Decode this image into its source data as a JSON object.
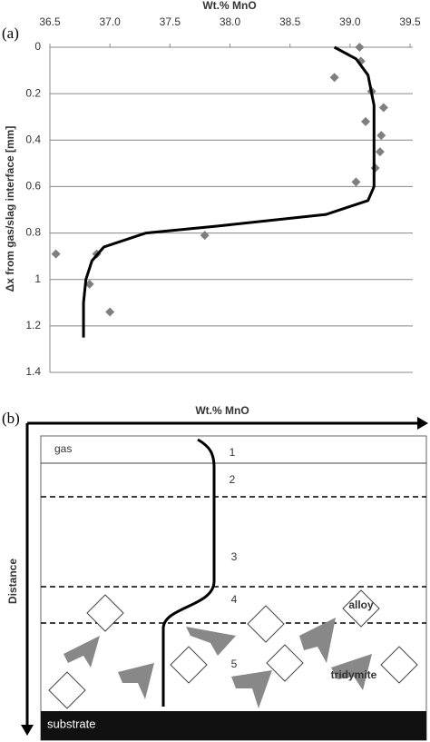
{
  "chart_data": {
    "type": "scatter-line",
    "panel_label": "(a)",
    "x_label": "Wt.% MnO",
    "y_label": "Δx from gas/slag interface [mm]",
    "xlim": [
      36.5,
      39.5
    ],
    "xticks": [
      36.5,
      {
        "value": 37,
        "label": "37.0"
      },
      37.5,
      {
        "value": 38,
        "label": "38.0"
      },
      38.5,
      {
        "value": 39,
        "label": "39.0"
      },
      39.5
    ],
    "ylim": [
      0,
      1.4
    ],
    "yticks": [
      0,
      0.2,
      0.4,
      0.6,
      0.8,
      1,
      1.2,
      1.4
    ],
    "y_inverted": true,
    "x_axis_top": true,
    "grid": true,
    "series": [
      {
        "kind": "scatter",
        "color": "#7f7f7f",
        "x": [
          39.08,
          39.09,
          38.87,
          39.18,
          39.28,
          39.13,
          39.26,
          39.25,
          39.21,
          39.05,
          37.79,
          36.55,
          36.89,
          36.83,
          37.0
        ],
        "values": [
          0.0,
          0.06,
          0.13,
          0.19,
          0.26,
          0.32,
          0.38,
          0.45,
          0.52,
          0.58,
          0.81,
          0.89,
          0.89,
          1.02,
          1.14
        ]
      },
      {
        "kind": "line",
        "color": "#000000",
        "x": [
          38.87,
          39.05,
          39.15,
          39.2,
          39.2,
          39.15,
          38.8,
          37.9,
          37.3,
          36.95,
          36.85,
          36.8,
          36.78,
          36.78
        ],
        "values": [
          0.0,
          0.05,
          0.12,
          0.25,
          0.6,
          0.66,
          0.72,
          0.77,
          0.8,
          0.86,
          0.92,
          1.0,
          1.1,
          1.25
        ]
      }
    ]
  },
  "diagram": {
    "panel_label": "(b)",
    "x_axis": "Wt.% MnO",
    "y_axis": "Distance",
    "top_region": "gas",
    "zones": [
      "1",
      "2",
      "3",
      "4",
      "5"
    ],
    "alloy": "alloy",
    "tridymite": "tridymite",
    "substrate": "substrate"
  }
}
